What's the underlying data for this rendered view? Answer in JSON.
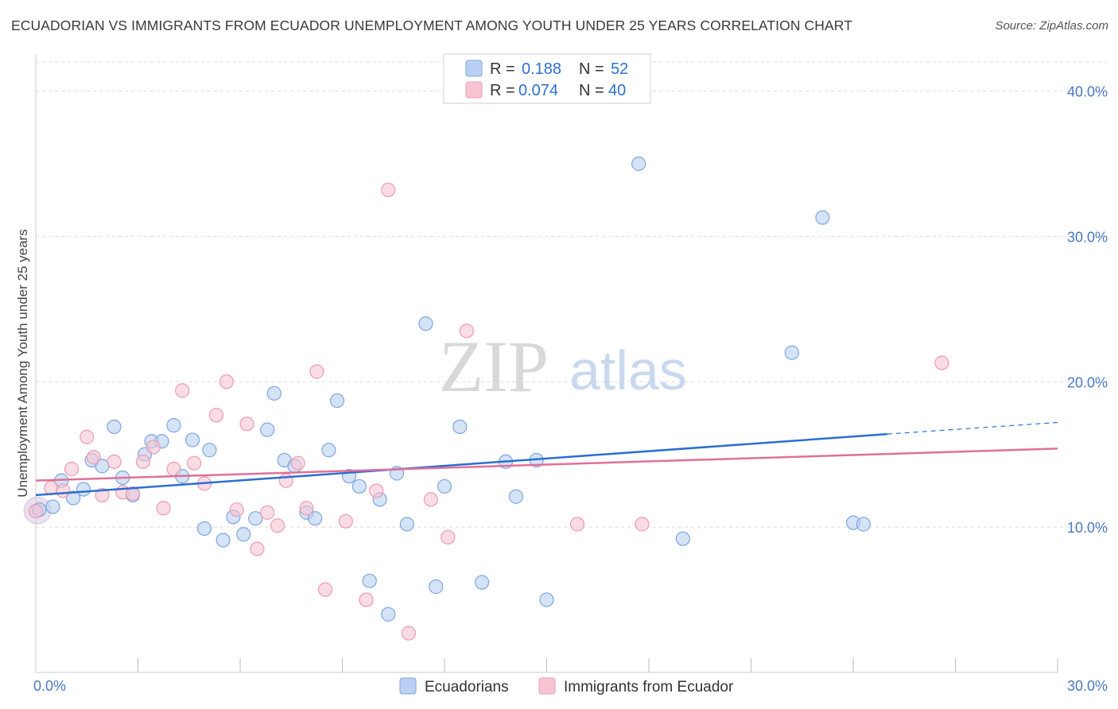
{
  "title": "ECUADORIAN VS IMMIGRANTS FROM ECUADOR UNEMPLOYMENT AMONG YOUTH UNDER 25 YEARS CORRELATION CHART",
  "source": "Source: ZipAtlas.com",
  "watermark": {
    "zip": "ZIP",
    "atlas": "atlas"
  },
  "colors": {
    "blue_fill": "#b9d0f2",
    "blue_stroke": "#7ea6e0",
    "blue_line": "#2a6fd0",
    "pink_fill": "#f7c4d2",
    "pink_stroke": "#ee9ab4",
    "pink_line": "#e07098",
    "tick_text": "#4a78c2",
    "grid": "#dcdcdc"
  },
  "legend": {
    "rows": [
      {
        "r_label": "R = ",
        "r_value": "0.188",
        "n_label": "N = ",
        "n_value": "52"
      },
      {
        "r_label": "R = ",
        "r_value": "0.074",
        "n_label": "N = ",
        "n_value": "40"
      }
    ]
  },
  "chart_data": {
    "type": "scatter",
    "title": "ECUADORIAN VS IMMIGRANTS FROM ECUADOR UNEMPLOYMENT AMONG YOUTH UNDER 25 YEARS CORRELATION CHART",
    "xlabel": "",
    "ylabel": "Unemployment Among Youth under 25 years",
    "xlim": [
      0,
      30
    ],
    "ylim": [
      0,
      42
    ],
    "x_tick_labels": [
      "0.0%",
      "30.0%"
    ],
    "y_ticks": [
      10,
      20,
      30,
      40
    ],
    "y_tick_labels": [
      "10.0%",
      "20.0%",
      "30.0%",
      "40.0%"
    ],
    "grid": "horizontal-dashed",
    "legend_position": "top-center",
    "series": [
      {
        "name": "Ecuadorians",
        "color": "#b9d0f2",
        "points": [
          [
            0.1,
            11.2
          ],
          [
            0.5,
            11.4
          ],
          [
            0.75,
            13.2
          ],
          [
            1.1,
            12.0
          ],
          [
            1.4,
            12.6
          ],
          [
            1.65,
            14.6
          ],
          [
            1.95,
            14.2
          ],
          [
            2.3,
            16.9
          ],
          [
            2.55,
            13.4
          ],
          [
            2.85,
            12.2
          ],
          [
            3.2,
            15.0
          ],
          [
            3.4,
            15.9
          ],
          [
            3.7,
            15.9
          ],
          [
            4.05,
            17.0
          ],
          [
            4.3,
            13.5
          ],
          [
            4.6,
            16.0
          ],
          [
            4.95,
            9.9
          ],
          [
            5.1,
            15.3
          ],
          [
            5.5,
            9.1
          ],
          [
            5.8,
            10.7
          ],
          [
            6.1,
            9.5
          ],
          [
            6.45,
            10.6
          ],
          [
            6.8,
            16.7
          ],
          [
            7.0,
            19.2
          ],
          [
            7.3,
            14.6
          ],
          [
            7.6,
            14.2
          ],
          [
            7.95,
            11.0
          ],
          [
            8.2,
            10.6
          ],
          [
            8.6,
            15.3
          ],
          [
            8.85,
            18.7
          ],
          [
            9.2,
            13.5
          ],
          [
            9.5,
            12.8
          ],
          [
            9.8,
            6.3
          ],
          [
            10.1,
            11.9
          ],
          [
            10.35,
            4.0
          ],
          [
            10.6,
            13.7
          ],
          [
            10.9,
            10.2
          ],
          [
            11.45,
            24.0
          ],
          [
            11.75,
            5.9
          ],
          [
            12.0,
            12.8
          ],
          [
            12.45,
            16.9
          ],
          [
            13.1,
            6.2
          ],
          [
            13.8,
            14.5
          ],
          [
            14.1,
            12.1
          ],
          [
            14.7,
            14.6
          ],
          [
            15.0,
            5.0
          ],
          [
            17.7,
            35.0
          ],
          [
            19.0,
            9.2
          ],
          [
            22.2,
            22.0
          ],
          [
            23.1,
            31.3
          ],
          [
            24.0,
            10.3
          ],
          [
            24.3,
            10.2
          ]
        ],
        "trend": {
          "x": [
            0,
            25
          ],
          "y": [
            12.2,
            16.4
          ]
        },
        "trend_dashed": {
          "x": [
            25,
            30
          ],
          "y": [
            16.4,
            17.2
          ]
        }
      },
      {
        "name": "Immigrants from Ecuador",
        "color": "#f7c4d2",
        "points": [
          [
            0.0,
            11.1
          ],
          [
            0.45,
            12.7
          ],
          [
            0.8,
            12.5
          ],
          [
            1.05,
            14.0
          ],
          [
            1.5,
            16.2
          ],
          [
            1.7,
            14.8
          ],
          [
            1.95,
            12.2
          ],
          [
            2.3,
            14.5
          ],
          [
            2.55,
            12.4
          ],
          [
            2.85,
            12.3
          ],
          [
            3.15,
            14.5
          ],
          [
            3.45,
            15.5
          ],
          [
            3.75,
            11.3
          ],
          [
            4.05,
            14.0
          ],
          [
            4.3,
            19.4
          ],
          [
            4.65,
            14.4
          ],
          [
            4.95,
            13.0
          ],
          [
            5.3,
            17.7
          ],
          [
            5.6,
            20.0
          ],
          [
            5.9,
            11.2
          ],
          [
            6.2,
            17.1
          ],
          [
            6.5,
            8.5
          ],
          [
            6.8,
            11.0
          ],
          [
            7.1,
            10.1
          ],
          [
            7.35,
            13.2
          ],
          [
            7.7,
            14.4
          ],
          [
            7.95,
            11.3
          ],
          [
            8.25,
            20.7
          ],
          [
            8.5,
            5.7
          ],
          [
            9.1,
            10.4
          ],
          [
            9.7,
            5.0
          ],
          [
            10.0,
            12.5
          ],
          [
            10.35,
            33.2
          ],
          [
            10.95,
            2.7
          ],
          [
            11.6,
            11.9
          ],
          [
            12.1,
            9.3
          ],
          [
            12.65,
            23.5
          ],
          [
            15.9,
            10.2
          ],
          [
            17.8,
            10.2
          ],
          [
            26.6,
            21.3
          ]
        ],
        "trend": {
          "x": [
            0,
            30
          ],
          "y": [
            13.2,
            15.4
          ]
        }
      }
    ]
  }
}
